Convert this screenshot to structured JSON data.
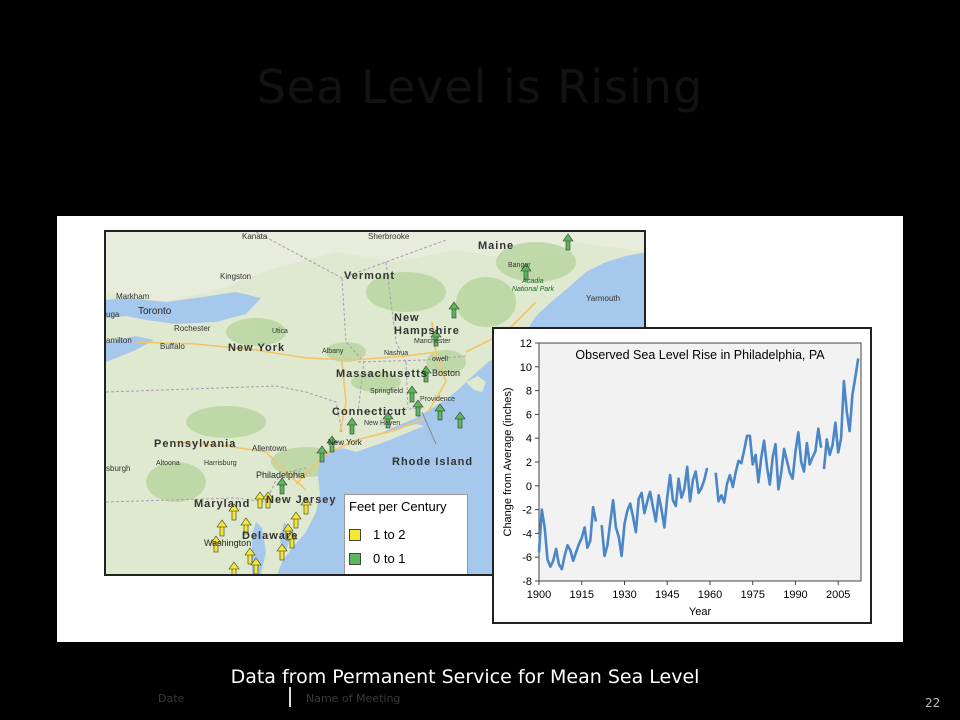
{
  "slide": {
    "title": "Sea Level is Rising",
    "caption": "Data from Permanent Service for Mean Sea Level",
    "footer_date": "Date",
    "footer_meeting": "Name of Meeting",
    "page_number": "22"
  },
  "map": {
    "labels": {
      "kanata": "Kanata",
      "sherbrooke": "Sherbrooke",
      "maine": "Maine",
      "bangor": "Bangor",
      "acadia": "Acadia National Park",
      "yarmouth": "Yarmouth",
      "vermont": "Vermont",
      "kingston": "Kingston",
      "markham": "Markham",
      "toronto": "Toronto",
      "mississauga": "uga",
      "hamilton": "amilton",
      "rochester": "Rochester",
      "buffalo": "Buffalo",
      "utica": "Utica",
      "new_hampshire": "New Hampshire",
      "new_york": "New York",
      "albany": "Albany",
      "manchester": "Manchester",
      "nashua": "Nashua",
      "lowell": "owell",
      "massachusetts": "Massachusetts",
      "boston": "Boston",
      "springfield": "Springfield",
      "connecticut": "Connecticut",
      "providence": "Providence",
      "new_haven": "New Haven",
      "new_york_city": "New York",
      "rhode_island": "Rhode Island",
      "pennsylvania": "Pennsylvania",
      "allentown": "Allentown",
      "pittsburgh": "sburgh",
      "altoona": "Altoona",
      "harrisburg": "Harrisburg",
      "philadelphia": "Philadelphia",
      "new_jersey": "New Jersey",
      "maryland": "Maryland",
      "washington": "Washington",
      "delaware": "Delaware"
    },
    "legend": {
      "title": "Feet per Century",
      "items": [
        {
          "label": "1 to 2",
          "color": "#f5e833"
        },
        {
          "label": "0 to 1",
          "color": "#5cb85c"
        }
      ]
    },
    "colors": {
      "land": "#d8e6c8",
      "water": "#a6c8ec",
      "arrow_green": "#5cb85c",
      "arrow_yellow": "#f5e833"
    }
  },
  "chart_data": {
    "type": "line",
    "title": "Observed Sea Level Rise in Philadelphia, PA",
    "xlabel": "Year",
    "ylabel": "Change from Average (inches)",
    "xlim": [
      1900,
      2013
    ],
    "ylim": [
      -8,
      12
    ],
    "xticks": [
      1900,
      1915,
      1930,
      1945,
      1960,
      1975,
      1990,
      2005
    ],
    "yticks": [
      -8,
      -6,
      -4,
      -2,
      0,
      2,
      4,
      6,
      8,
      10,
      12
    ],
    "grid": false,
    "color": "#4a86c8",
    "series": [
      {
        "segments": [
          {
            "x": [
              1900,
              1901,
              1902,
              1903,
              1904,
              1905,
              1906,
              1907,
              1908,
              1909,
              1910,
              1911,
              1912,
              1913,
              1914,
              1915,
              1916,
              1917,
              1918,
              1919,
              1920
            ],
            "y": [
              -5.6,
              -2.0,
              -3.5,
              -6.2,
              -6.8,
              -6.3,
              -5.3,
              -6.6,
              -7.0,
              -5.9,
              -5.0,
              -5.4,
              -6.3,
              -5.6,
              -4.9,
              -4.4,
              -3.5,
              -5.2,
              -4.6,
              -1.8,
              -3.0
            ]
          },
          {
            "x": [
              1922,
              1923,
              1924,
              1925,
              1926,
              1927,
              1928,
              1929,
              1930,
              1931,
              1932,
              1933,
              1934,
              1935,
              1936,
              1937,
              1938,
              1939,
              1940,
              1941,
              1942,
              1943,
              1944,
              1945,
              1946,
              1947,
              1948,
              1949,
              1950,
              1951,
              1952,
              1953,
              1954,
              1955,
              1956,
              1957,
              1958,
              1959
            ],
            "y": [
              -3.3,
              -5.9,
              -5.0,
              -3.1,
              -1.2,
              -3.5,
              -4.3,
              -5.9,
              -3.2,
              -2.1,
              -1.5,
              -2.6,
              -3.9,
              -1.1,
              -0.6,
              -2.3,
              -1.3,
              -0.5,
              -1.8,
              -3.0,
              -0.8,
              -2.0,
              -3.5,
              -1.0,
              0.9,
              -1.2,
              -1.7,
              0.6,
              -1.0,
              -0.3,
              1.6,
              -1.3,
              0.5,
              1.2,
              -0.6,
              -0.2,
              0.5,
              1.5
            ]
          },
          {
            "x": [
              1962,
              1963,
              1964,
              1965,
              1966,
              1967,
              1968,
              1969,
              1970,
              1971,
              1972,
              1973,
              1974,
              1975,
              1976,
              1977,
              1978,
              1979,
              1980,
              1981,
              1982,
              1983,
              1984,
              1985,
              1986,
              1987,
              1988,
              1989,
              1990,
              1991,
              1992,
              1993,
              1994,
              1995,
              1996,
              1997,
              1998,
              1999
            ],
            "y": [
              1.1,
              -1.3,
              -0.8,
              -1.4,
              0.2,
              0.9,
              -0.1,
              1.1,
              2.1,
              1.9,
              3.0,
              4.2,
              4.2,
              1.8,
              2.6,
              0.3,
              2.4,
              3.8,
              1.6,
              0.1,
              2.4,
              3.5,
              -0.3,
              1.1,
              3.1,
              2.1,
              1.1,
              0.6,
              2.9,
              4.5,
              2.0,
              1.2,
              3.6,
              1.8,
              2.4,
              2.9,
              4.8,
              3.2
            ]
          },
          {
            "x": [
              2000,
              2001,
              2002,
              2003,
              2004,
              2005,
              2006,
              2007,
              2008,
              2009,
              2010,
              2011,
              2012
            ],
            "y": [
              1.4,
              3.9,
              2.6,
              3.4,
              5.3,
              2.8,
              4.0,
              8.8,
              6.2,
              4.6,
              7.7,
              9.1,
              10.7
            ]
          }
        ]
      }
    ],
    "data_points_note": ""
  }
}
